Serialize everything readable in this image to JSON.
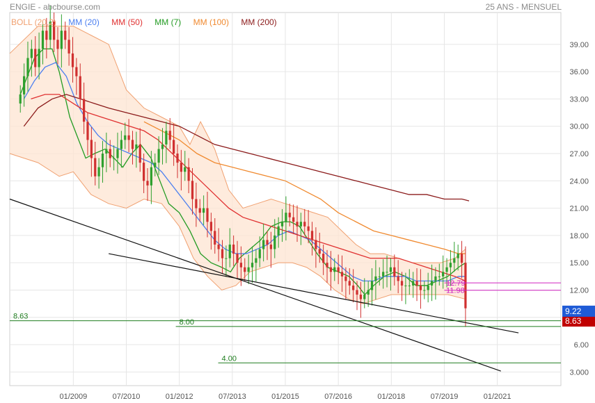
{
  "header": {
    "title": "ENGIE - abcbourse.com",
    "subtitle": "25 ANS - MENSUEL"
  },
  "legend": [
    {
      "label": "BOLL (20,2)",
      "color": "#f0a070"
    },
    {
      "label": "MM (20)",
      "color": "#4b7ff0"
    },
    {
      "label": "MM (50)",
      "color": "#e03030"
    },
    {
      "label": "MM (7)",
      "color": "#239b23"
    },
    {
      "label": "MM (100)",
      "color": "#f08a30"
    },
    {
      "label": "MM (200)",
      "color": "#8b1a1a"
    }
  ],
  "chart_data": {
    "type": "candlestick",
    "x_ticks": [
      "01/2009",
      "07/2010",
      "01/2012",
      "07/2013",
      "01/2015",
      "07/2016",
      "01/2018",
      "07/2019",
      "01/2021"
    ],
    "y_ticks": [
      3,
      6,
      9,
      12,
      15,
      18,
      21,
      24,
      27,
      30,
      33,
      36,
      39
    ],
    "y_tick_labels": [
      "3.000",
      "6.00",
      "9.00",
      "12.00",
      "15.00",
      "18.00",
      "21.00",
      "24.00",
      "27.00",
      "30.00",
      "33.00",
      "36.00",
      "39.00"
    ],
    "ylim": [
      1.5,
      42.5
    ],
    "xlim": [
      2007.2,
      2022.8
    ],
    "price_last": {
      "label": "9.22",
      "value": 9.22,
      "color": "#1f5bd6"
    },
    "price_second": {
      "label": "8.63",
      "value": 8.6,
      "color": "#c00000"
    },
    "levels": [
      {
        "label": "8.63",
        "value": 8.63,
        "x_start": 2007.2
      },
      {
        "label": "8.00",
        "value": 8.0,
        "x_start": 2011.9
      },
      {
        "label": "4.00",
        "value": 4.0,
        "x_start": 2013.1
      }
    ],
    "magenta_levels": [
      {
        "label": "12.79",
        "value": 12.79
      },
      {
        "label": "11.98",
        "value": 11.98
      }
    ],
    "trendlines": [
      {
        "from": [
          2007.2,
          22.0
        ],
        "to": [
          2021.1,
          3.1
        ]
      },
      {
        "from": [
          2010.0,
          16.0
        ],
        "to": [
          2021.6,
          7.3
        ]
      }
    ],
    "closes": [
      33.5,
      35.5,
      37.5,
      38.5,
      36.5,
      38.5,
      40.5,
      39.5,
      41.5,
      39.5,
      38.5,
      40.5,
      39.5,
      38.0,
      36.5,
      35.5,
      33.0,
      30.5,
      28.5,
      26.5,
      24.5,
      25.5,
      27.0,
      27.5,
      26.5,
      26.5,
      27.5,
      28.5,
      29.0,
      28.5,
      27.5,
      28.0,
      26.0,
      24.0,
      23.5,
      25.5,
      26.0,
      27.5,
      28.0,
      29.5,
      28.5,
      27.0,
      26.0,
      25.0,
      25.5,
      24.0,
      22.0,
      21.0,
      20.5,
      21.0,
      19.5,
      18.5,
      17.0,
      16.5,
      15.5,
      15.5,
      17.0,
      16.0,
      15.0,
      14.5,
      14.0,
      14.5,
      15.0,
      15.5,
      16.5,
      17.5,
      17.0,
      16.5,
      18.0,
      19.0,
      19.5,
      20.5,
      20.0,
      19.5,
      19.0,
      19.5,
      19.0,
      18.5,
      17.5,
      16.5,
      16.0,
      15.0,
      14.5,
      14.0,
      14.5,
      14.0,
      13.5,
      13.0,
      12.5,
      12.0,
      11.5,
      11.0,
      11.5,
      12.0,
      13.0,
      13.5,
      13.5,
      14.0,
      14.0,
      14.5,
      13.5,
      13.0,
      12.5,
      12.5,
      12.5,
      13.0,
      12.5,
      12.0,
      12.0,
      12.5,
      13.0,
      13.5,
      13.5,
      14.0,
      14.5,
      15.0,
      15.5,
      16.0,
      15.0,
      10.0
    ],
    "ma_curves": [
      {
        "name": "MM (7)",
        "points": [
          [
            2007.5,
            33.5
          ],
          [
            2007.7,
            35.5
          ],
          [
            2007.9,
            37.5
          ],
          [
            2008.15,
            38.5
          ],
          [
            2008.4,
            38.5
          ],
          [
            2008.6,
            36.0
          ],
          [
            2008.9,
            31.0
          ],
          [
            2009.15,
            28.5
          ],
          [
            2009.35,
            26.5
          ],
          [
            2009.6,
            27.0
          ],
          [
            2009.9,
            27.5
          ],
          [
            2010.15,
            26.5
          ],
          [
            2010.4,
            25.5
          ],
          [
            2010.65,
            27.0
          ],
          [
            2010.9,
            28.0
          ],
          [
            2011.2,
            26.5
          ],
          [
            2011.45,
            24.0
          ],
          [
            2011.7,
            21.5
          ],
          [
            2012.0,
            20.5
          ],
          [
            2012.3,
            18.5
          ],
          [
            2012.6,
            16.0
          ],
          [
            2012.9,
            15.0
          ],
          [
            2013.2,
            14.5
          ],
          [
            2013.45,
            14.0
          ],
          [
            2013.7,
            15.5
          ],
          [
            2014.0,
            16.5
          ],
          [
            2014.3,
            17.5
          ],
          [
            2014.6,
            19.0
          ],
          [
            2014.9,
            19.5
          ],
          [
            2015.15,
            19.5
          ],
          [
            2015.4,
            19.0
          ],
          [
            2015.65,
            17.5
          ],
          [
            2015.9,
            16.0
          ],
          [
            2016.2,
            14.5
          ],
          [
            2016.5,
            14.0
          ],
          [
            2016.8,
            13.5
          ],
          [
            2017.05,
            12.5
          ],
          [
            2017.25,
            11.5
          ],
          [
            2017.5,
            12.5
          ],
          [
            2017.8,
            13.5
          ],
          [
            2018.1,
            14.0
          ],
          [
            2018.4,
            13.5
          ],
          [
            2018.7,
            12.5
          ],
          [
            2019.0,
            12.5
          ],
          [
            2019.3,
            13.0
          ],
          [
            2019.6,
            13.5
          ],
          [
            2019.9,
            14.5
          ],
          [
            2020.1,
            15.0
          ]
        ]
      },
      {
        "name": "MM (20)",
        "points": [
          [
            2007.6,
            33.0
          ],
          [
            2007.9,
            35.0
          ],
          [
            2008.2,
            36.5
          ],
          [
            2008.5,
            37.0
          ],
          [
            2008.8,
            35.5
          ],
          [
            2009.1,
            32.5
          ],
          [
            2009.4,
            30.5
          ],
          [
            2009.7,
            29.0
          ],
          [
            2010.0,
            28.0
          ],
          [
            2010.3,
            27.5
          ],
          [
            2010.6,
            27.0
          ],
          [
            2010.9,
            26.5
          ],
          [
            2011.2,
            26.0
          ],
          [
            2011.5,
            25.0
          ],
          [
            2011.8,
            23.5
          ],
          [
            2012.1,
            22.0
          ],
          [
            2012.4,
            20.5
          ],
          [
            2012.7,
            19.0
          ],
          [
            2013.0,
            17.5
          ],
          [
            2013.3,
            16.5
          ],
          [
            2013.6,
            16.0
          ],
          [
            2013.9,
            16.0
          ],
          [
            2014.2,
            16.5
          ],
          [
            2014.5,
            17.0
          ],
          [
            2014.8,
            18.0
          ],
          [
            2015.1,
            18.5
          ],
          [
            2015.4,
            18.0
          ],
          [
            2015.7,
            17.5
          ],
          [
            2016.0,
            16.5
          ],
          [
            2016.3,
            15.5
          ],
          [
            2016.6,
            14.5
          ],
          [
            2016.9,
            13.5
          ],
          [
            2017.2,
            13.0
          ],
          [
            2017.5,
            13.0
          ],
          [
            2017.8,
            13.5
          ],
          [
            2018.1,
            13.5
          ],
          [
            2018.4,
            13.5
          ],
          [
            2018.7,
            13.0
          ],
          [
            2019.0,
            13.0
          ],
          [
            2019.3,
            13.0
          ],
          [
            2019.6,
            13.0
          ],
          [
            2019.9,
            13.5
          ],
          [
            2020.1,
            13.5
          ]
        ]
      },
      {
        "name": "MM (50)",
        "points": [
          [
            2007.8,
            33.0
          ],
          [
            2008.2,
            33.5
          ],
          [
            2008.6,
            33.5
          ],
          [
            2009.0,
            32.5
          ],
          [
            2009.4,
            31.5
          ],
          [
            2009.8,
            31.0
          ],
          [
            2010.2,
            30.5
          ],
          [
            2010.6,
            30.0
          ],
          [
            2011.0,
            29.5
          ],
          [
            2011.4,
            28.5
          ],
          [
            2011.8,
            27.0
          ],
          [
            2012.2,
            25.5
          ],
          [
            2012.6,
            24.0
          ],
          [
            2013.0,
            22.5
          ],
          [
            2013.4,
            21.0
          ],
          [
            2013.8,
            20.0
          ],
          [
            2014.2,
            19.5
          ],
          [
            2014.6,
            19.0
          ],
          [
            2015.0,
            18.5
          ],
          [
            2015.4,
            18.0
          ],
          [
            2015.8,
            17.5
          ],
          [
            2016.2,
            17.0
          ],
          [
            2016.6,
            16.5
          ],
          [
            2017.0,
            16.0
          ],
          [
            2017.4,
            15.5
          ],
          [
            2017.8,
            15.5
          ],
          [
            2018.2,
            15.5
          ],
          [
            2018.6,
            15.0
          ],
          [
            2019.0,
            14.5
          ],
          [
            2019.4,
            14.0
          ],
          [
            2019.8,
            13.5
          ],
          [
            2020.1,
            13.0
          ]
        ]
      },
      {
        "name": "MM (100)",
        "points": [
          [
            2011.0,
            30.5
          ],
          [
            2011.5,
            29.5
          ],
          [
            2012.0,
            28.5
          ],
          [
            2012.5,
            27.0
          ],
          [
            2013.0,
            26.0
          ],
          [
            2013.5,
            25.5
          ],
          [
            2014.0,
            25.0
          ],
          [
            2014.5,
            24.5
          ],
          [
            2015.0,
            24.0
          ],
          [
            2015.5,
            23.0
          ],
          [
            2016.0,
            22.0
          ],
          [
            2016.5,
            20.5
          ],
          [
            2017.0,
            19.5
          ],
          [
            2017.5,
            18.5
          ],
          [
            2018.0,
            18.0
          ],
          [
            2018.5,
            17.5
          ],
          [
            2019.0,
            17.0
          ],
          [
            2019.5,
            16.5
          ],
          [
            2019.9,
            16.0
          ],
          [
            2020.1,
            16.0
          ]
        ]
      },
      {
        "name": "MM (200)",
        "points": [
          [
            2007.6,
            30.0
          ],
          [
            2008.0,
            32.0
          ],
          [
            2008.4,
            33.0
          ],
          [
            2008.8,
            33.5
          ],
          [
            2009.2,
            33.0
          ],
          [
            2009.6,
            32.5
          ],
          [
            2010.0,
            32.0
          ],
          [
            2010.5,
            31.5
          ],
          [
            2011.0,
            31.0
          ],
          [
            2011.5,
            30.5
          ],
          [
            2012.0,
            30.0
          ],
          [
            2012.5,
            29.0
          ],
          [
            2013.0,
            28.0
          ],
          [
            2013.5,
            27.5
          ],
          [
            2014.0,
            27.0
          ],
          [
            2014.5,
            26.5
          ],
          [
            2015.0,
            26.0
          ],
          [
            2015.5,
            25.5
          ],
          [
            2016.0,
            25.0
          ],
          [
            2016.5,
            24.5
          ],
          [
            2017.0,
            24.0
          ],
          [
            2017.5,
            23.5
          ],
          [
            2018.0,
            23.0
          ],
          [
            2018.5,
            22.5
          ],
          [
            2019.0,
            22.5
          ],
          [
            2019.5,
            22.0
          ],
          [
            2020.0,
            22.0
          ],
          [
            2020.2,
            21.8
          ]
        ]
      }
    ],
    "bollinger_upper": [
      [
        2007.2,
        38.0
      ],
      [
        2008.0,
        41.0
      ],
      [
        2009.0,
        41.0
      ],
      [
        2009.5,
        40.0
      ],
      [
        2010.0,
        39.0
      ],
      [
        2010.5,
        34.0
      ],
      [
        2011.0,
        32.0
      ],
      [
        2011.5,
        31.0
      ],
      [
        2012.0,
        30.0
      ],
      [
        2012.3,
        28.0
      ],
      [
        2012.6,
        30.5
      ],
      [
        2013.0,
        27.5
      ],
      [
        2013.4,
        23.0
      ],
      [
        2013.8,
        21.0
      ],
      [
        2014.2,
        21.5
      ],
      [
        2014.6,
        22.0
      ],
      [
        2015.0,
        21.5
      ],
      [
        2015.4,
        21.0
      ],
      [
        2015.8,
        20.5
      ],
      [
        2016.2,
        20.0
      ],
      [
        2016.6,
        18.5
      ],
      [
        2017.0,
        17.0
      ],
      [
        2017.4,
        16.0
      ],
      [
        2017.8,
        16.0
      ],
      [
        2018.2,
        15.5
      ],
      [
        2018.6,
        15.0
      ],
      [
        2019.0,
        15.0
      ],
      [
        2019.4,
        15.0
      ],
      [
        2019.8,
        15.5
      ],
      [
        2020.1,
        16.5
      ]
    ],
    "bollinger_lower": [
      [
        2007.2,
        27.0
      ],
      [
        2008.0,
        26.0
      ],
      [
        2008.6,
        24.5
      ],
      [
        2009.0,
        25.0
      ],
      [
        2009.5,
        22.5
      ],
      [
        2010.0,
        21.5
      ],
      [
        2010.5,
        21.0
      ],
      [
        2011.0,
        22.0
      ],
      [
        2011.5,
        21.5
      ],
      [
        2012.0,
        19.0
      ],
      [
        2012.4,
        15.5
      ],
      [
        2012.8,
        13.5
      ],
      [
        2013.2,
        12.0
      ],
      [
        2013.6,
        12.5
      ],
      [
        2014.0,
        14.0
      ],
      [
        2014.4,
        14.5
      ],
      [
        2014.8,
        15.0
      ],
      [
        2015.2,
        15.0
      ],
      [
        2015.6,
        14.5
      ],
      [
        2016.0,
        13.5
      ],
      [
        2016.4,
        12.0
      ],
      [
        2016.8,
        11.0
      ],
      [
        2017.2,
        10.5
      ],
      [
        2017.6,
        11.0
      ],
      [
        2018.0,
        11.5
      ],
      [
        2018.4,
        11.5
      ],
      [
        2018.8,
        11.5
      ],
      [
        2019.2,
        11.5
      ],
      [
        2019.6,
        11.5
      ],
      [
        2020.1,
        11.0
      ]
    ]
  }
}
